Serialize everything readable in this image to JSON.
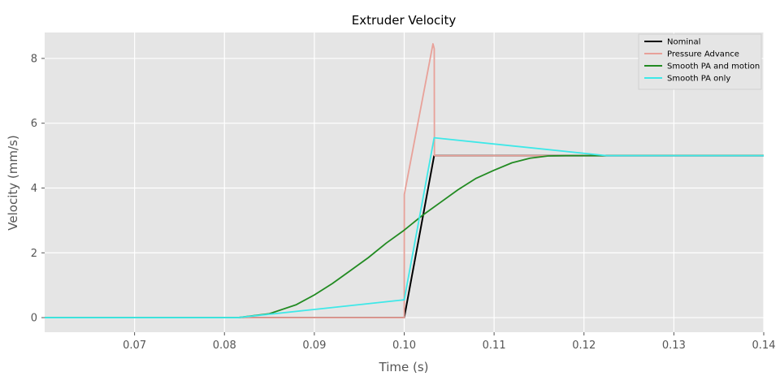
{
  "chart_data": {
    "type": "line",
    "title": "Extruder Velocity",
    "xlabel": "Time (s)",
    "ylabel": "Velocity (mm/s)",
    "xlim": [
      0.06,
      0.14
    ],
    "ylim": [
      -0.45,
      8.8
    ],
    "xticks": [
      0.07,
      0.08,
      0.09,
      0.1,
      0.11,
      0.12,
      0.13,
      0.14
    ],
    "xtick_labels": [
      "0.07",
      "0.08",
      "0.09",
      "0.10",
      "0.11",
      "0.12",
      "0.13",
      "0.14"
    ],
    "yticks": [
      0,
      2,
      4,
      6,
      8
    ],
    "ytick_labels": [
      "0",
      "2",
      "4",
      "6",
      "8"
    ],
    "grid": true,
    "background": "#e5e5e5",
    "legend_position": "top-right",
    "series": [
      {
        "name": "Nominal",
        "color": "#000000",
        "x": [
          0.06,
          0.1,
          0.10333,
          0.14
        ],
        "y": [
          0,
          0,
          5,
          5
        ]
      },
      {
        "name": "Pressure Advance",
        "color": "#e8a199",
        "x": [
          0.06,
          0.1,
          0.10001,
          0.1032,
          0.10334,
          0.10336,
          0.14
        ],
        "y": [
          0,
          0,
          3.8,
          8.45,
          8.3,
          5,
          5
        ]
      },
      {
        "name": "Smooth PA and motion",
        "color": "#228b22",
        "x": [
          0.06,
          0.0815,
          0.085,
          0.088,
          0.09,
          0.092,
          0.094,
          0.096,
          0.098,
          0.1,
          0.102,
          0.104,
          0.106,
          0.108,
          0.11,
          0.112,
          0.114,
          0.116,
          0.118,
          0.14
        ],
        "y": [
          0,
          0,
          0.12,
          0.4,
          0.7,
          1.05,
          1.45,
          1.85,
          2.3,
          2.7,
          3.15,
          3.55,
          3.95,
          4.3,
          4.55,
          4.78,
          4.92,
          4.99,
          5.0,
          5.0
        ]
      },
      {
        "name": "Smooth PA only",
        "color": "#3ee8e8",
        "x": [
          0.06,
          0.0815,
          0.1,
          0.10333,
          0.1225,
          0.14
        ],
        "y": [
          0,
          0,
          0.55,
          5.55,
          5.0,
          5.0
        ]
      }
    ]
  }
}
